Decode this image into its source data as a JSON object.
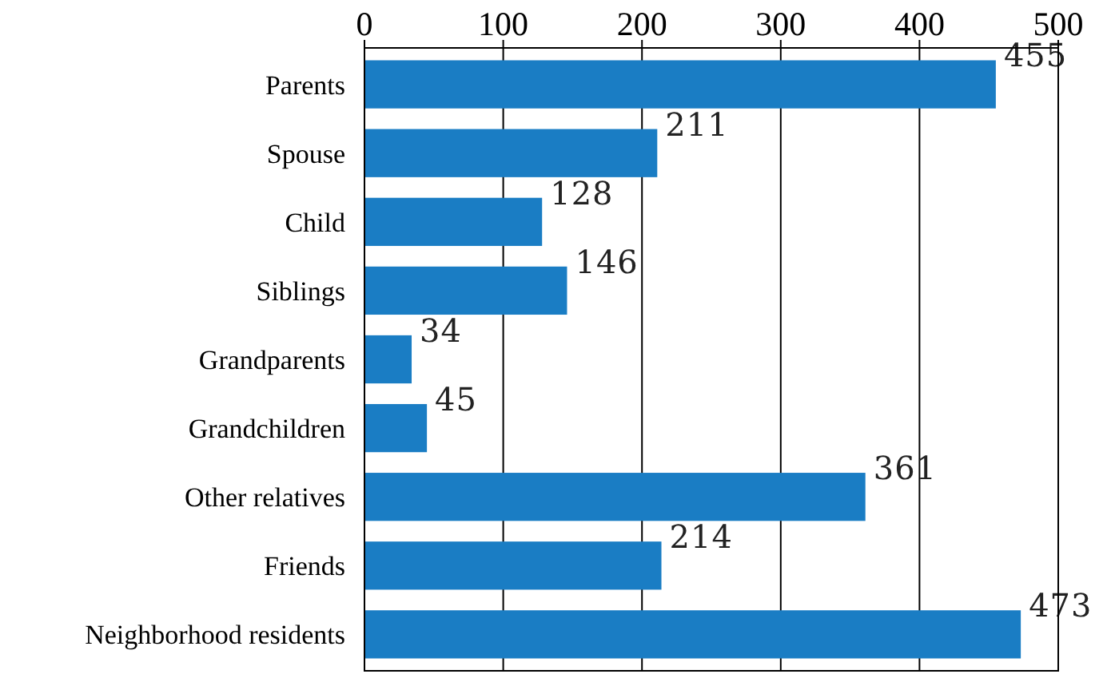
{
  "chart_data": {
    "type": "bar",
    "orientation": "horizontal",
    "categories": [
      "Parents",
      "Spouse",
      "Child",
      "Siblings",
      "Grandparents",
      "Grandchildren",
      "Other relatives",
      "Friends",
      "Neighborhood residents"
    ],
    "values": [
      455,
      211,
      128,
      146,
      34,
      45,
      361,
      214,
      473
    ],
    "color": "#1a7dc4",
    "xlim": [
      0,
      500
    ],
    "xticks": [
      0,
      100,
      200,
      300,
      400,
      500
    ],
    "grid": "x",
    "data_labels": true
  }
}
